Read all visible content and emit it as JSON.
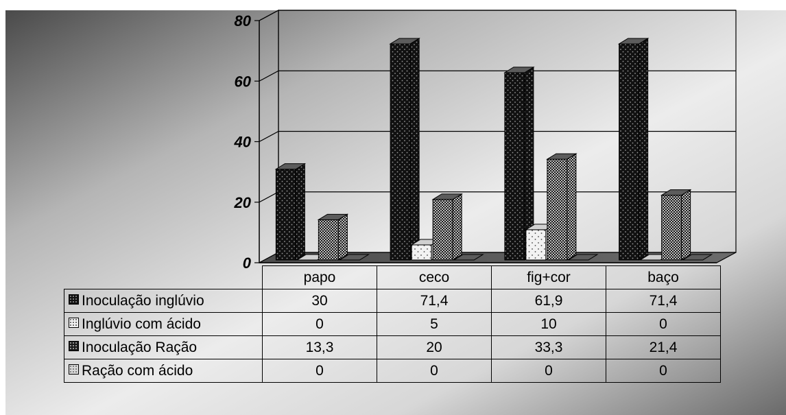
{
  "chart_data": {
    "type": "bar",
    "categories": [
      "papo",
      "ceco",
      "fig+cor",
      "baço"
    ],
    "series": [
      {
        "name": "Inoculação inglúvio",
        "values": [
          30,
          71.4,
          61.9,
          71.4
        ],
        "labels": [
          "30",
          "71,4",
          "61,9",
          "71,4"
        ],
        "color": "#111111",
        "dot": "#9a9a9a",
        "pattern": "dots-on-black"
      },
      {
        "name": "Inglúvio com ácido",
        "values": [
          0,
          5,
          10,
          0
        ],
        "labels": [
          "0",
          "5",
          "10",
          "0"
        ],
        "color": "#f2f2f2",
        "dot": "#444444",
        "pattern": "dots-on-white"
      },
      {
        "name": "Inoculação Ração",
        "values": [
          13.3,
          20,
          33.3,
          21.4
        ],
        "labels": [
          "13,3",
          "20",
          "33,3",
          "21,4"
        ],
        "color": "#1a1a1a",
        "dot": "#bdbdbd",
        "pattern": "checker-dark"
      },
      {
        "name": "Ração com ácido",
        "values": [
          0,
          0,
          0,
          0
        ],
        "labels": [
          "0",
          "0",
          "0",
          "0"
        ],
        "color": "#d8d8d8",
        "dot": "#666666",
        "pattern": "checker-light"
      }
    ],
    "ylim": [
      0,
      80
    ],
    "yticks": [
      "0",
      "20",
      "40",
      "60",
      "80"
    ],
    "grid": true,
    "legend": "data-table-left",
    "title": "",
    "xlabel": "",
    "ylabel": ""
  }
}
